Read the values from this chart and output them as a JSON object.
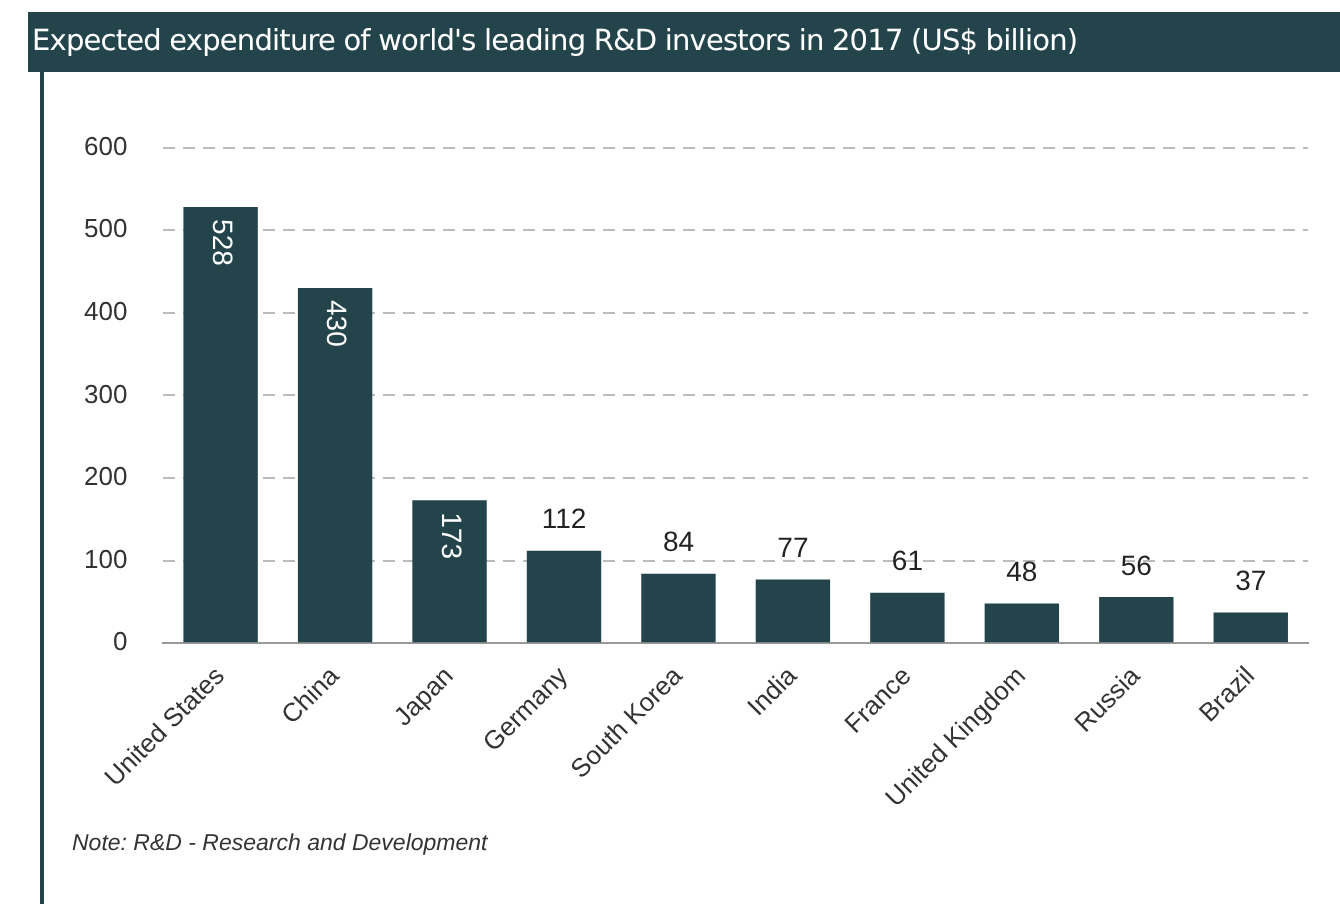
{
  "chart_data": {
    "type": "bar",
    "title": "Expected expenditure of world's leading R&D investors in 2017 (US$ billion)",
    "categories": [
      "United States",
      "China",
      "Japan",
      "Germany",
      "South Korea",
      "India",
      "France",
      "United Kingdom",
      "Russia",
      "Brazil"
    ],
    "values": [
      528,
      430,
      173,
      112,
      84,
      77,
      61,
      48,
      56,
      37
    ],
    "color": "#24444c",
    "ylim": [
      0,
      600
    ],
    "yticks": [
      0,
      100,
      200,
      300,
      400,
      500,
      600
    ],
    "grid": "y",
    "data_labels": true,
    "annotations": [
      "Note: R&D - Research and Development"
    ]
  }
}
